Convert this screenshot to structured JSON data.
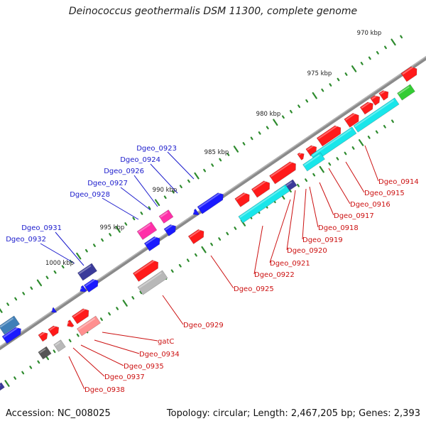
{
  "title": "Deinococcus geothermalis DSM 11300, complete genome",
  "footer": {
    "accession": "Accession: NC_008025",
    "summary": "Topology: circular; Length: 2,467,205 bp; Genes: 2,393"
  },
  "colors": {
    "backbone": "#8a8a8a",
    "tick": "#2e8b2e",
    "label_top": "#1a1acc",
    "label_bottom": "#cc1111",
    "red": "#ff1a1a",
    "blue": "#1a1aff",
    "cyan": "#19e6ea",
    "magenta": "#ff2fa8",
    "navy": "#3a3a9a",
    "gray": "#b8b8b8",
    "darkgray": "#555555",
    "green": "#33cc33",
    "steelblue": "#3f7fb8",
    "pink": "#ff8f8f"
  },
  "scale_labels": [
    "970 kbp",
    "975 kbp",
    "980 kbp",
    "985 kbp",
    "990 kbp",
    "995 kbp",
    "1000 kbp"
  ],
  "upper_genes": [
    "Dgeo_0923",
    "Dgeo_0924",
    "Dgeo_0926",
    "Dgeo_0927",
    "Dgeo_0928",
    "Dgeo_0931",
    "Dgeo_0932"
  ],
  "lower_genes": [
    "Dgeo_0914",
    "Dgeo_0915",
    "Dgeo_0916",
    "Dgeo_0917",
    "Dgeo_0918",
    "Dgeo_0919",
    "Dgeo_0920",
    "Dgeo_0921",
    "Dgeo_0922",
    "Dgeo_0925",
    "Dgeo_0929",
    "gatC",
    "Dgeo_0934",
    "Dgeo_0935",
    "Dgeo_0937",
    "Dgeo_0938"
  ]
}
